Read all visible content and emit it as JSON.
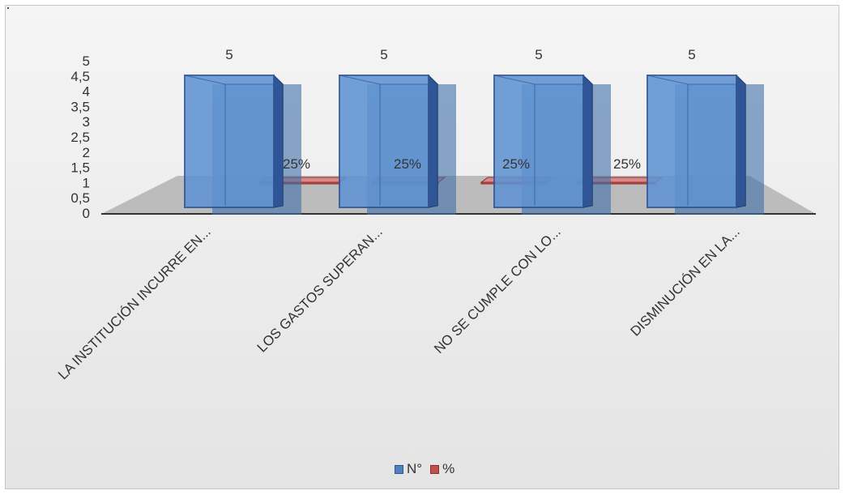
{
  "chart_data": {
    "type": "bar",
    "categories": [
      "LA INSTITUCIÓN INCURRE EN...",
      "LOS GASTOS SUPERAN...",
      "NO SE CUMPLE CON LO...",
      "DISMINUCIÓN EN LA..."
    ],
    "series": [
      {
        "name": "N°",
        "values": [
          5,
          5,
          5,
          5
        ],
        "labels": [
          "5",
          "5",
          "5",
          "5"
        ],
        "color": "#4f81bd"
      },
      {
        "name": "%",
        "values": [
          0.25,
          0.25,
          0.25,
          0.25
        ],
        "labels": [
          "25%",
          "25%",
          "25%",
          "25%"
        ],
        "color": "#c0504d"
      }
    ],
    "y_ticks": [
      "0",
      "0,5",
      "1",
      "1,5",
      "2",
      "2,5",
      "3",
      "3,5",
      "4",
      "4,5",
      "5"
    ],
    "ylim": [
      0,
      5
    ],
    "style": "3d-column",
    "grid": false,
    "legend_position": "bottom"
  }
}
